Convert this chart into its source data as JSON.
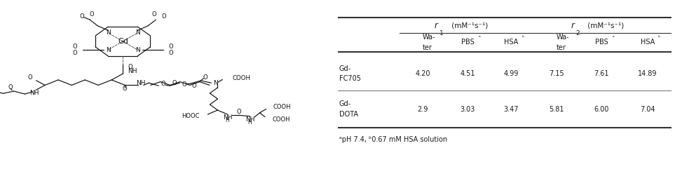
{
  "table": {
    "col_group1_label_italic": "r",
    "col_group1_label_sub": "1",
    "col_group1_label_rest": " (mM⁻¹s⁻¹)",
    "col_group2_label_italic": "r",
    "col_group2_label_sub": "2",
    "col_group2_label_rest": " (mM⁻¹s⁻¹)",
    "sub_headers": [
      "Wa-\nter",
      "PBSᵃ",
      "HSAᵇ",
      "Wa-\nter",
      "PBSᵃ",
      "HSAᵇ"
    ],
    "rows": [
      {
        "label": "Gd-\nFC705",
        "values": [
          "4.20",
          "4.51",
          "4.99",
          "7.15",
          "7.61",
          "14.89"
        ]
      },
      {
        "label": "Gd-\nDOTA",
        "values": [
          "2.9",
          "3.03",
          "3.47",
          "5.81",
          "6.00",
          "7.04"
        ]
      }
    ],
    "footnote_a": "ᵃ",
    "footnote_b": "ᵇ",
    "footnote_text": "pH 7.4, ",
    "footnote_text2": "0.67 mM HSA solution"
  },
  "figure_bg": "#ffffff",
  "text_color": "#1a1a1a",
  "line_color": "#333333",
  "fs_header": 8.5,
  "fs_body": 8.0,
  "fs_footnote": 7.0
}
